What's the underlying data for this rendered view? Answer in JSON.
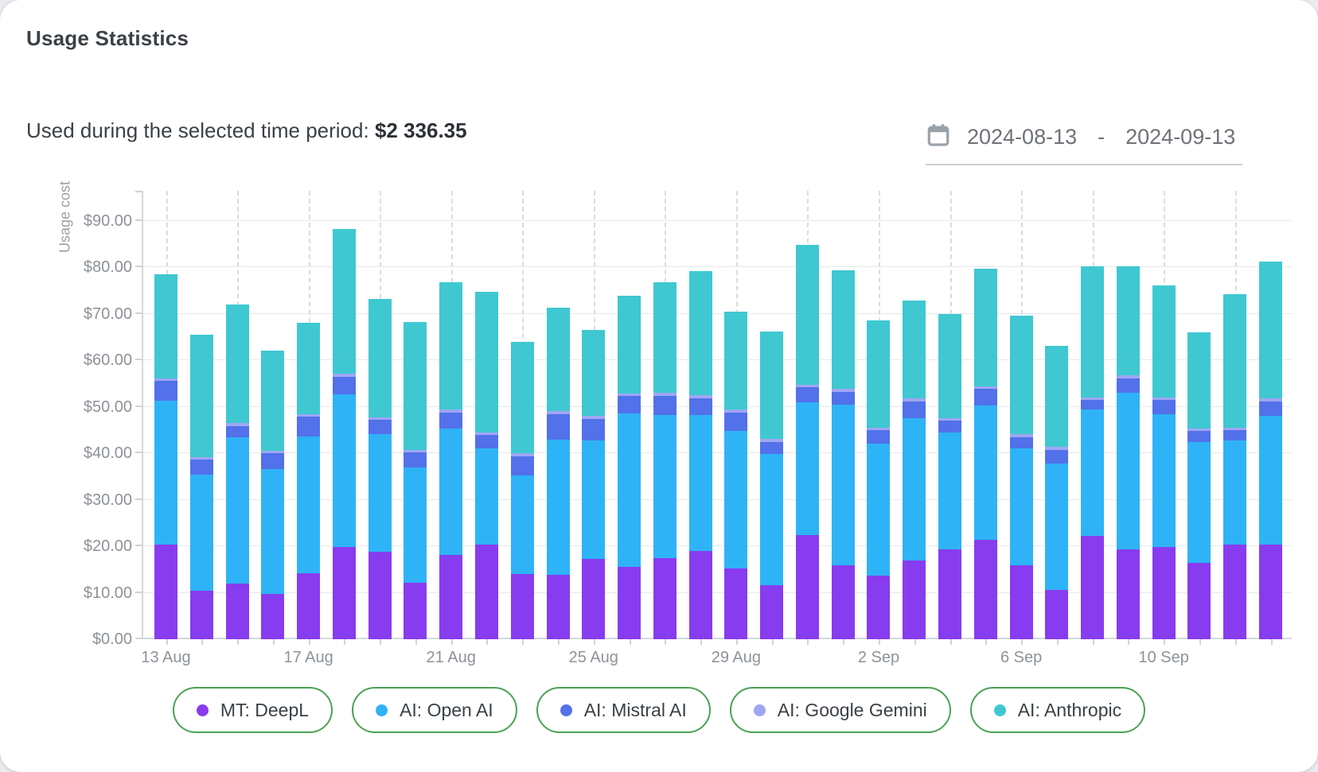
{
  "header": {
    "title": "Usage Statistics"
  },
  "summary": {
    "label": "Used during the selected time period:",
    "value": "$2 336.35"
  },
  "date_picker": {
    "start": "2024-08-13",
    "separator": "-",
    "end": "2024-09-13",
    "icon": "calendar-icon"
  },
  "legend": {
    "border_color": "#4ba254",
    "position": "bottom"
  },
  "chart_data": {
    "type": "bar",
    "stacked": true,
    "title": "Usage Statistics",
    "xlabel": "",
    "ylabel": "Usage cost",
    "ylim": [
      0,
      96.5
    ],
    "grid": {
      "horizontal": "solid",
      "vertical": "dashed, every 2nd bar"
    },
    "ytick_values": [
      0,
      10,
      20,
      30,
      40,
      50,
      60,
      70,
      80,
      90
    ],
    "ytick_labels": [
      "$0.00",
      "$10.00",
      "$20.00",
      "$30.00",
      "$40.00",
      "$50.00",
      "$60.00",
      "$70.00",
      "$80.00",
      "$90.00"
    ],
    "categories": [
      "13 Aug",
      "14 Aug",
      "15 Aug",
      "16 Aug",
      "17 Aug",
      "18 Aug",
      "19 Aug",
      "20 Aug",
      "21 Aug",
      "22 Aug",
      "23 Aug",
      "24 Aug",
      "25 Aug",
      "26 Aug",
      "27 Aug",
      "28 Aug",
      "29 Aug",
      "30 Aug",
      "31 Aug",
      "1 Sep",
      "2 Sep",
      "3 Sep",
      "4 Sep",
      "5 Sep",
      "6 Sep",
      "7 Sep",
      "8 Sep",
      "9 Sep",
      "10 Sep",
      "11 Sep",
      "12 Sep",
      "13 Sep"
    ],
    "xtick_label_indices": [
      0,
      4,
      8,
      12,
      16,
      20,
      24,
      28
    ],
    "series": [
      {
        "name": "MT: DeepL",
        "color": "#873cef",
        "values": [
          20.4,
          10.5,
          12.0,
          9.8,
          14.2,
          19.8,
          18.9,
          12.1,
          18.2,
          20.3,
          14.1,
          13.9,
          17.3,
          15.5,
          17.4,
          19.0,
          15.3,
          11.6,
          22.4,
          16.0,
          13.7,
          17.0,
          19.4,
          21.4,
          16.0,
          10.6,
          22.3,
          19.4,
          19.8,
          16.5,
          20.3,
          20.4
        ]
      },
      {
        "name": "AI: Open AI",
        "color": "#2fb3f7",
        "values": [
          30.9,
          24.9,
          31.5,
          26.8,
          29.4,
          32.9,
          25.3,
          24.8,
          27.1,
          20.7,
          21.1,
          29.0,
          25.5,
          33.1,
          30.9,
          29.2,
          29.5,
          28.3,
          28.6,
          34.4,
          28.4,
          30.5,
          25.1,
          28.9,
          25.1,
          27.3,
          27.2,
          33.6,
          28.7,
          26.0,
          22.5,
          27.6
        ]
      },
      {
        "name": "AI: Mistral AI",
        "color": "#5271ea",
        "values": [
          4.3,
          3.2,
          2.4,
          3.4,
          4.3,
          3.8,
          3.0,
          3.3,
          3.5,
          2.9,
          4.2,
          5.6,
          4.6,
          3.7,
          4.1,
          3.7,
          4.0,
          2.6,
          3.2,
          2.9,
          2.9,
          3.7,
          2.5,
          3.6,
          2.4,
          2.9,
          2.0,
          3.2,
          3.0,
          2.3,
          2.2,
          3.2
        ]
      },
      {
        "name": "AI: Google Gemini",
        "color": "#9fa6f4",
        "values": [
          0.6,
          0.6,
          0.6,
          0.6,
          0.6,
          0.6,
          0.6,
          0.6,
          0.6,
          0.6,
          0.6,
          0.6,
          0.6,
          0.6,
          0.6,
          0.6,
          0.6,
          0.6,
          0.6,
          0.6,
          0.6,
          0.6,
          0.6,
          0.6,
          0.6,
          0.6,
          0.6,
          0.6,
          0.6,
          0.6,
          0.6,
          0.6
        ]
      },
      {
        "name": "AI: Anthropic",
        "color": "#3fc8d1",
        "values": [
          22.3,
          26.3,
          25.5,
          21.6,
          19.6,
          31.2,
          25.4,
          27.5,
          27.5,
          30.2,
          24.0,
          22.2,
          18.6,
          21.0,
          23.9,
          26.8,
          21.1,
          23.2,
          30.0,
          25.5,
          23.0,
          21.1,
          22.4,
          25.2,
          25.5,
          21.7,
          28.2,
          23.4,
          24.0,
          20.7,
          28.7,
          29.5
        ]
      }
    ]
  }
}
